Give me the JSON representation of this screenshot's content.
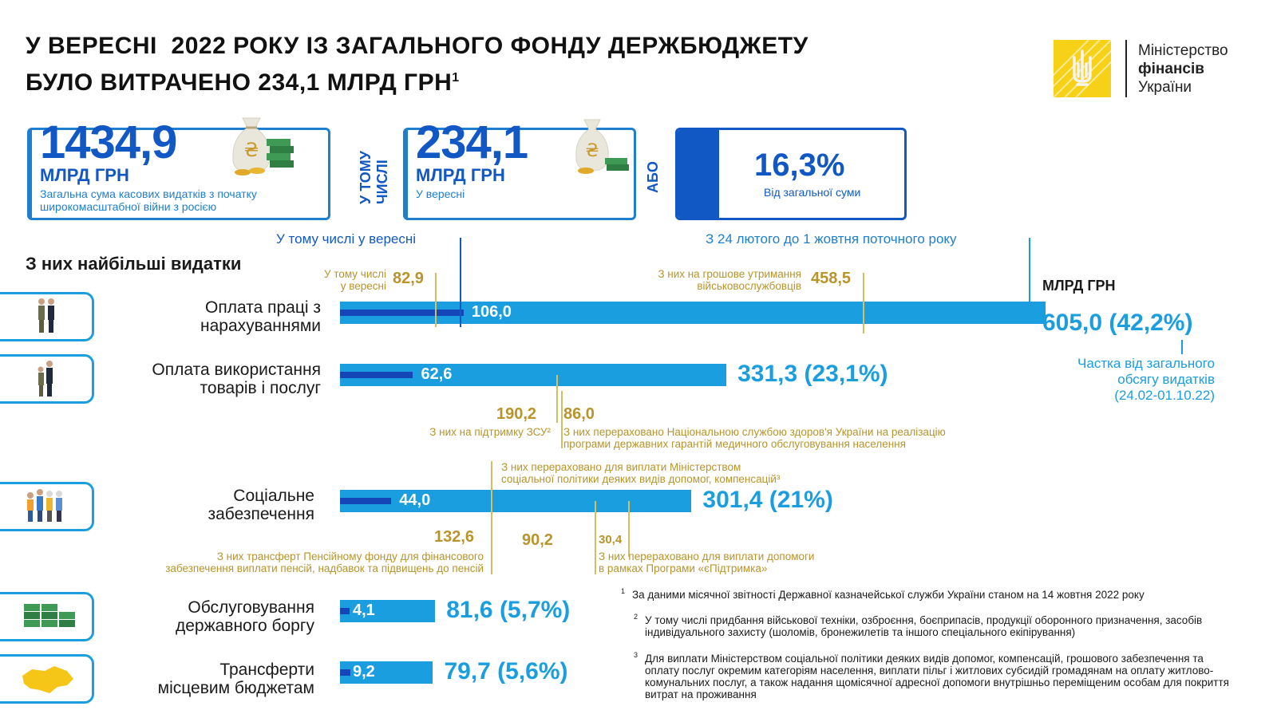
{
  "header": {
    "title_line1": "У ВЕРЕСНІ  2022 РОКУ ІЗ ЗАГАЛЬНОГО ФОНДУ ДЕРЖБЮДЖЕТУ",
    "title_line2": "БУЛО ВИТРАЧЕНО 234,1 МЛРД ГРН",
    "title_sup": "1"
  },
  "logo": {
    "line1": "Міністерство",
    "line2": "фінансів",
    "line3": "України",
    "color": "#f7d117"
  },
  "cards": {
    "total": {
      "value": "1434,9",
      "unit": "МЛРД ГРН",
      "desc": "Загальна сума касових видатків з початку широкомасштабної війни з росією"
    },
    "in_total_label_1": "У ТОМУ",
    "in_total_label_2": "ЧИСЛІ",
    "september": {
      "value": "234,1",
      "unit": "МЛРД ГРН",
      "desc": "У вересні"
    },
    "or_label": "АБО",
    "share": {
      "value": "16,3%",
      "desc": "Від загальної суми"
    }
  },
  "chart_header": {
    "september_note": "У тому числі у вересні",
    "period_note": "З 24 лютого до 1 жовтня поточного року",
    "section_title": "З них найбільші видатки",
    "unit_label": "МЛРД ГРН",
    "share_note_1": "Частка від загального",
    "share_note_2": "обсягу видатків",
    "share_note_3": "(24.02-01.10.22)"
  },
  "chart_data": {
    "type": "bar",
    "orientation": "horizontal",
    "unit": "МЛРД ГРН",
    "categories": [
      "Оплата праці з нарахуваннями",
      "Оплата використання товарів і послуг",
      "Соціальне забезпечення",
      "Обслуговування державного боргу",
      "Трансферти місцевим бюджетам"
    ],
    "series": [
      {
        "name": "З 24 лютого до 1 жовтня поточного року",
        "values": [
          605.0,
          331.3,
          301.4,
          81.6,
          79.7
        ]
      },
      {
        "name": "У тому числі у вересні",
        "values": [
          106.0,
          62.6,
          44.0,
          4.1,
          9.2
        ]
      }
    ],
    "share_percent": [
      42.2,
      23.1,
      21,
      5.7,
      5.6
    ],
    "colors": {
      "total": "#1a9ee0",
      "september": "#1446b8",
      "annotation": "#b8942a"
    }
  },
  "rows": [
    {
      "label_1": "Оплата праці з",
      "label_2": "нарахуваннями",
      "sept_label": "106,0",
      "total_label": "605,0 (42,2%)",
      "ann_sept_num": "82,9",
      "ann_sept_1": "У тому числі",
      "ann_sept_2": "у вересні",
      "ann_total_num": "458,5",
      "ann_total_1": "З них на грошове утримання",
      "ann_total_2": "військовослужбовців"
    },
    {
      "label_1": "Оплата використання",
      "label_2": "товарів і послуг",
      "sept_label": "62,6",
      "total_label": "331,3 (23,1%)",
      "ann_a_num": "190,2",
      "ann_a_txt": "З них на підтримку ЗСУ²",
      "ann_b_num": "86,0",
      "ann_b_1": "З них перераховано Національною службою здоров'я України на реалізацію",
      "ann_b_2": "програми державних гарантій медичного обслуговування населення"
    },
    {
      "label_1": "Соціальне",
      "label_2": "забезпечення",
      "sept_label": "44,0",
      "total_label": "301,4 (21%)",
      "ann_top_1": "З них перераховано для виплати Міністерством",
      "ann_top_2": "соціальної політики деяких видів допомог, компенсацій³",
      "ann_a_num": "132,6",
      "ann_a_1": "З них трансферт Пенсійному фонду для фінансового",
      "ann_a_2": "забезпечення виплати пенсій, надбавок та підвищень до пенсій",
      "ann_b_num": "90,2",
      "ann_c_num": "30,4",
      "ann_c_1": "З них перераховано для виплати допомоги",
      "ann_c_2": "в рамках Програми «єПідтримка»"
    },
    {
      "label_1": "Обслуговування",
      "label_2": "державного боргу",
      "sept_label": "4,1",
      "total_label": "81,6 (5,7%)"
    },
    {
      "label_1": "Трансферти",
      "label_2": "місцевим бюджетам",
      "sept_label": "9,2",
      "total_label": "79,7 (5,6%)"
    }
  ],
  "footnotes": [
    {
      "num": "1",
      "text": "За даними місячної звітності Державної казначейської служби України станом на 14 жовтня 2022 року"
    },
    {
      "num": "2",
      "text": "У тому числі придбання військової техніки, озброєння, боєприпасів, продукції оборонного призначення, засобів індивідуального захисту (шоломів, бронежилетів та іншого спеціального екіпірування)"
    },
    {
      "num": "3",
      "text": "Для виплати Міністерством соціальної політики деяких видів допомог, компенсацій, грошового забезпечення та оплату послуг окремим категоріям населення, виплати пільг і житлових субсидій громадянам на оплату житлово-комунальних послуг, а також надання щомісячної адресної допомоги внутрішньо переміщеним особам для покриття витрат на проживання"
    }
  ]
}
